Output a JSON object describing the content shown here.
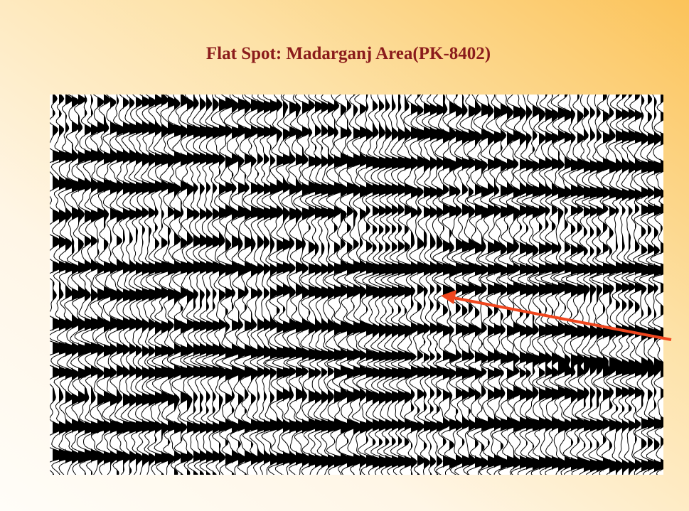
{
  "slide": {
    "title": "Flat Spot: Madarganj Area(PK-8402)"
  }
}
